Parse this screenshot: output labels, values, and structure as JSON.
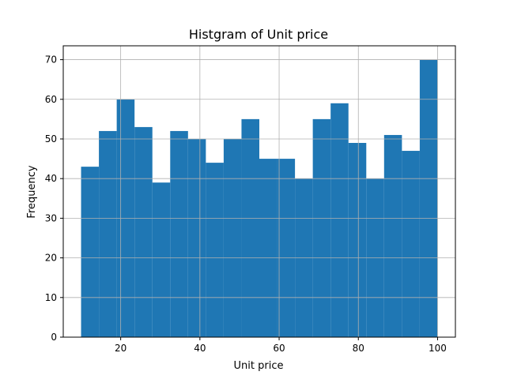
{
  "chart_data": {
    "type": "bar",
    "title": "Histgram of Unit price",
    "xlabel": "Unit price",
    "ylabel": "Frequency",
    "xlim": [
      5.5,
      104.5
    ],
    "ylim": [
      0,
      73.5
    ],
    "xticks": [
      20,
      40,
      60,
      80,
      100
    ],
    "yticks": [
      0,
      10,
      20,
      30,
      40,
      50,
      60,
      70
    ],
    "grid": true,
    "bin_edges": [
      10.0,
      14.5,
      19.0,
      23.5,
      28.0,
      32.5,
      37.0,
      41.5,
      46.0,
      50.5,
      55.0,
      59.5,
      64.0,
      68.5,
      73.0,
      77.5,
      82.0,
      86.5,
      91.0,
      95.5,
      100.0
    ],
    "values": [
      43,
      52,
      60,
      53,
      39,
      52,
      50,
      44,
      50,
      55,
      45,
      45,
      40,
      55,
      59,
      49,
      40,
      51,
      47,
      70
    ],
    "bar_color": "#1f77b4",
    "grid_color": "#b0b0b0"
  }
}
